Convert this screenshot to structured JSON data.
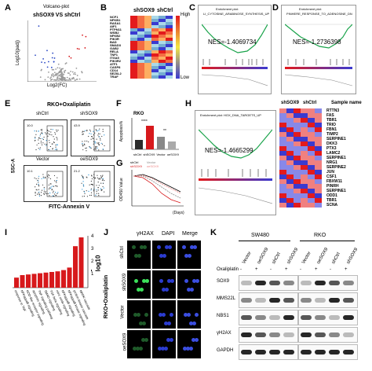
{
  "panels": {
    "A": {
      "letter": "A",
      "title": "Volcano-plot",
      "subtitle": "shSOX9 VS shCtrl",
      "ylabel": "Log10(padj)",
      "xlabel": "Log2(FC)"
    },
    "B": {
      "letter": "B",
      "col1": "shSOX9",
      "col2": "shCtrl",
      "high": "High",
      "low": "Low",
      "genes": [
        "NCF1",
        "NFKB1",
        "RASA1",
        "AIF1",
        "PTPN11",
        "WSB2",
        "NFKB2",
        "PIK3R",
        "BAD",
        "SMAD3",
        "GAB2",
        "RELA",
        "TNF1",
        "ITGA5",
        "PIK3R2",
        "ATF1",
        "CASP8",
        "CD14",
        "SEZ6L2",
        "TRAF"
      ]
    },
    "C": {
      "letter": "C",
      "gsea": "Enrichment plot:",
      "set": "LI_CYTOSINE_ARABINOSE_SYNTHESIS_UP",
      "nes": "NES=-1.4069734"
    },
    "D": {
      "letter": "D",
      "gsea": "Enrichment plot:",
      "set": "PINHERE_RESPONSE_TO_ADENOSINE_DN",
      "nes": "NES=-1.2736398"
    },
    "E": {
      "letter": "E",
      "title": "RKO+Oxaliplatin",
      "col1": "shCtrl",
      "col2": "shSOX9",
      "row2c1": "Vector",
      "row2c2": "oeSOX9",
      "ylabel": "SSC-A",
      "xlabel": "FITC-Annexin V",
      "pct": [
        "10.0",
        "43.9",
        "10.1",
        "21.2"
      ]
    },
    "F": {
      "letter": "F",
      "title": "RKO",
      "ylabel": "Apoptosis%",
      "xcats": [
        "shCtrl",
        "shSOX9",
        "Vector",
        "oeSOX9"
      ],
      "sig1": "****",
      "sig2": "**"
    },
    "G": {
      "letter": "G",
      "ylabel": "OD450 Value",
      "xlabel": "(Days)",
      "xticks": [
        "0",
        "1",
        "2",
        "3",
        "4",
        "5"
      ],
      "yticks": [
        "1.5",
        "1.0",
        "0.5",
        "0.0"
      ],
      "legend": [
        "shCtrl",
        "shSOX9",
        "Vector",
        "oeSOX9"
      ]
    },
    "H": {
      "letter": "H",
      "gsea": "Enrichment plot: HOX_DNA_TARGETS_UP",
      "nes": "NES=-1.4665299",
      "col1": "shSOX9",
      "col2": "shCtrl",
      "col3": "Sample name",
      "genes": [
        "RTTN3",
        "FAS",
        "TBR1",
        "TRIO",
        "FBN1",
        "TIMP2",
        "SERPINE1",
        "DKK3",
        "PTX3",
        "LAMC2",
        "SERPINE1",
        "NRG1",
        "SERPINE2",
        "JUN",
        "CSF1",
        "FBXW11",
        "PINRH",
        "SERPINE1",
        "ODD1",
        "TBR1",
        "SCNA"
      ]
    },
    "I": {
      "letter": "I",
      "ylabel": "-log10",
      "ymax": "4",
      "yticks": [
        "4",
        "3",
        "2",
        "1",
        "0"
      ],
      "terms": [
        "response to TNF",
        "NFKappaB signaling",
        "NOD-like receptor signaling",
        "apoptotic signaling",
        "TNF signaling pathway",
        "SMAD signaling",
        "TGF-beta signaling",
        "nitric oxide signaling",
        "NFKappaB signaling",
        "NFKappaB kinase signaling",
        "protein kinase cascade",
        "MAPK cascade"
      ],
      "values": [
        0.8,
        1.0,
        1.05,
        1.1,
        1.15,
        1.2,
        1.25,
        1.3,
        1.4,
        1.6,
        3.3,
        4.0
      ]
    },
    "J": {
      "letter": "J",
      "cols": [
        "γH2AX",
        "DAPI",
        "Merge"
      ],
      "sidelabel": "RKO+Oxaliplatin",
      "rows": [
        "shCtrl",
        "shSOX9",
        "Vector",
        "oeSOX9"
      ]
    },
    "K": {
      "letter": "K",
      "line1": "SW480",
      "line2": "RKO",
      "cols": [
        "Vector",
        "oeSOX9",
        "shCtrl",
        "shSOX9",
        "Vector",
        "oeSOX9",
        "shCtrl",
        "shSOX9"
      ],
      "oxa": "Oxaliplatin",
      "oxasigns": [
        "-",
        "+",
        "-",
        "+",
        "-",
        "+",
        "-",
        "+"
      ],
      "proteins": [
        "SOX9",
        "MMS22L",
        "NBS1",
        "γH2AX",
        "GAPDH"
      ]
    }
  },
  "colors": {
    "red": "#d7191c",
    "blue": "#2b49c4",
    "green": "#19a34a",
    "heatRed": "#e31a1c",
    "heatBlue": "#3a3ad0",
    "heatYellow": "#f4e842"
  }
}
